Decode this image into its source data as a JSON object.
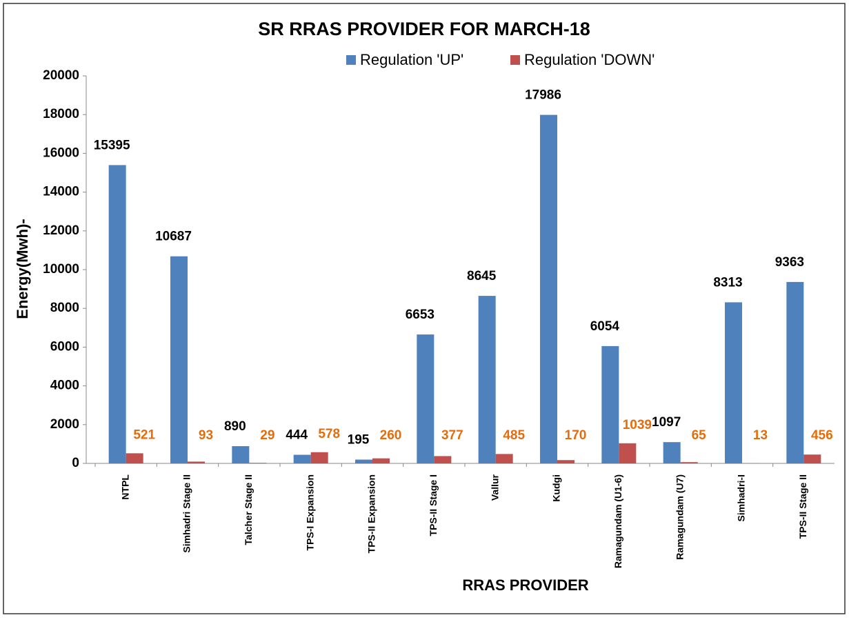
{
  "chart_data": {
    "type": "bar",
    "title": "SR RRAS PROVIDER FOR MARCH-18",
    "xlabel": "RRAS PROVIDER",
    "ylabel": "Energy(Mwh)-",
    "categories": [
      "NTPL",
      "Simhadri Stage II",
      "Talcher Stage II",
      "TPS-I Expansion",
      "TPS-II Expansion",
      "TPS-II Stage I",
      "Vallur",
      "Kudgi",
      "Ramagundam (U1-6)",
      "Ramagundam (U7)",
      "Simhadri-I",
      "TPS-II Stage II"
    ],
    "series": [
      {
        "name": "Regulation 'UP'",
        "color": "#4f81bd",
        "label_color": "#000000",
        "values": [
          15395,
          10687,
          890,
          444,
          195,
          6653,
          8645,
          17986,
          6054,
          1097,
          8313,
          9363
        ]
      },
      {
        "name": "Regulation 'DOWN'",
        "color": "#c0504d",
        "label_color": "#e46c0a",
        "values": [
          521,
          93,
          29,
          578,
          260,
          377,
          485,
          170,
          1039,
          65,
          13,
          456
        ]
      }
    ],
    "ylim": [
      0,
      20000
    ],
    "yticks": [
      0,
      2000,
      4000,
      6000,
      8000,
      10000,
      12000,
      14000,
      16000,
      18000,
      20000
    ],
    "grid": false
  }
}
